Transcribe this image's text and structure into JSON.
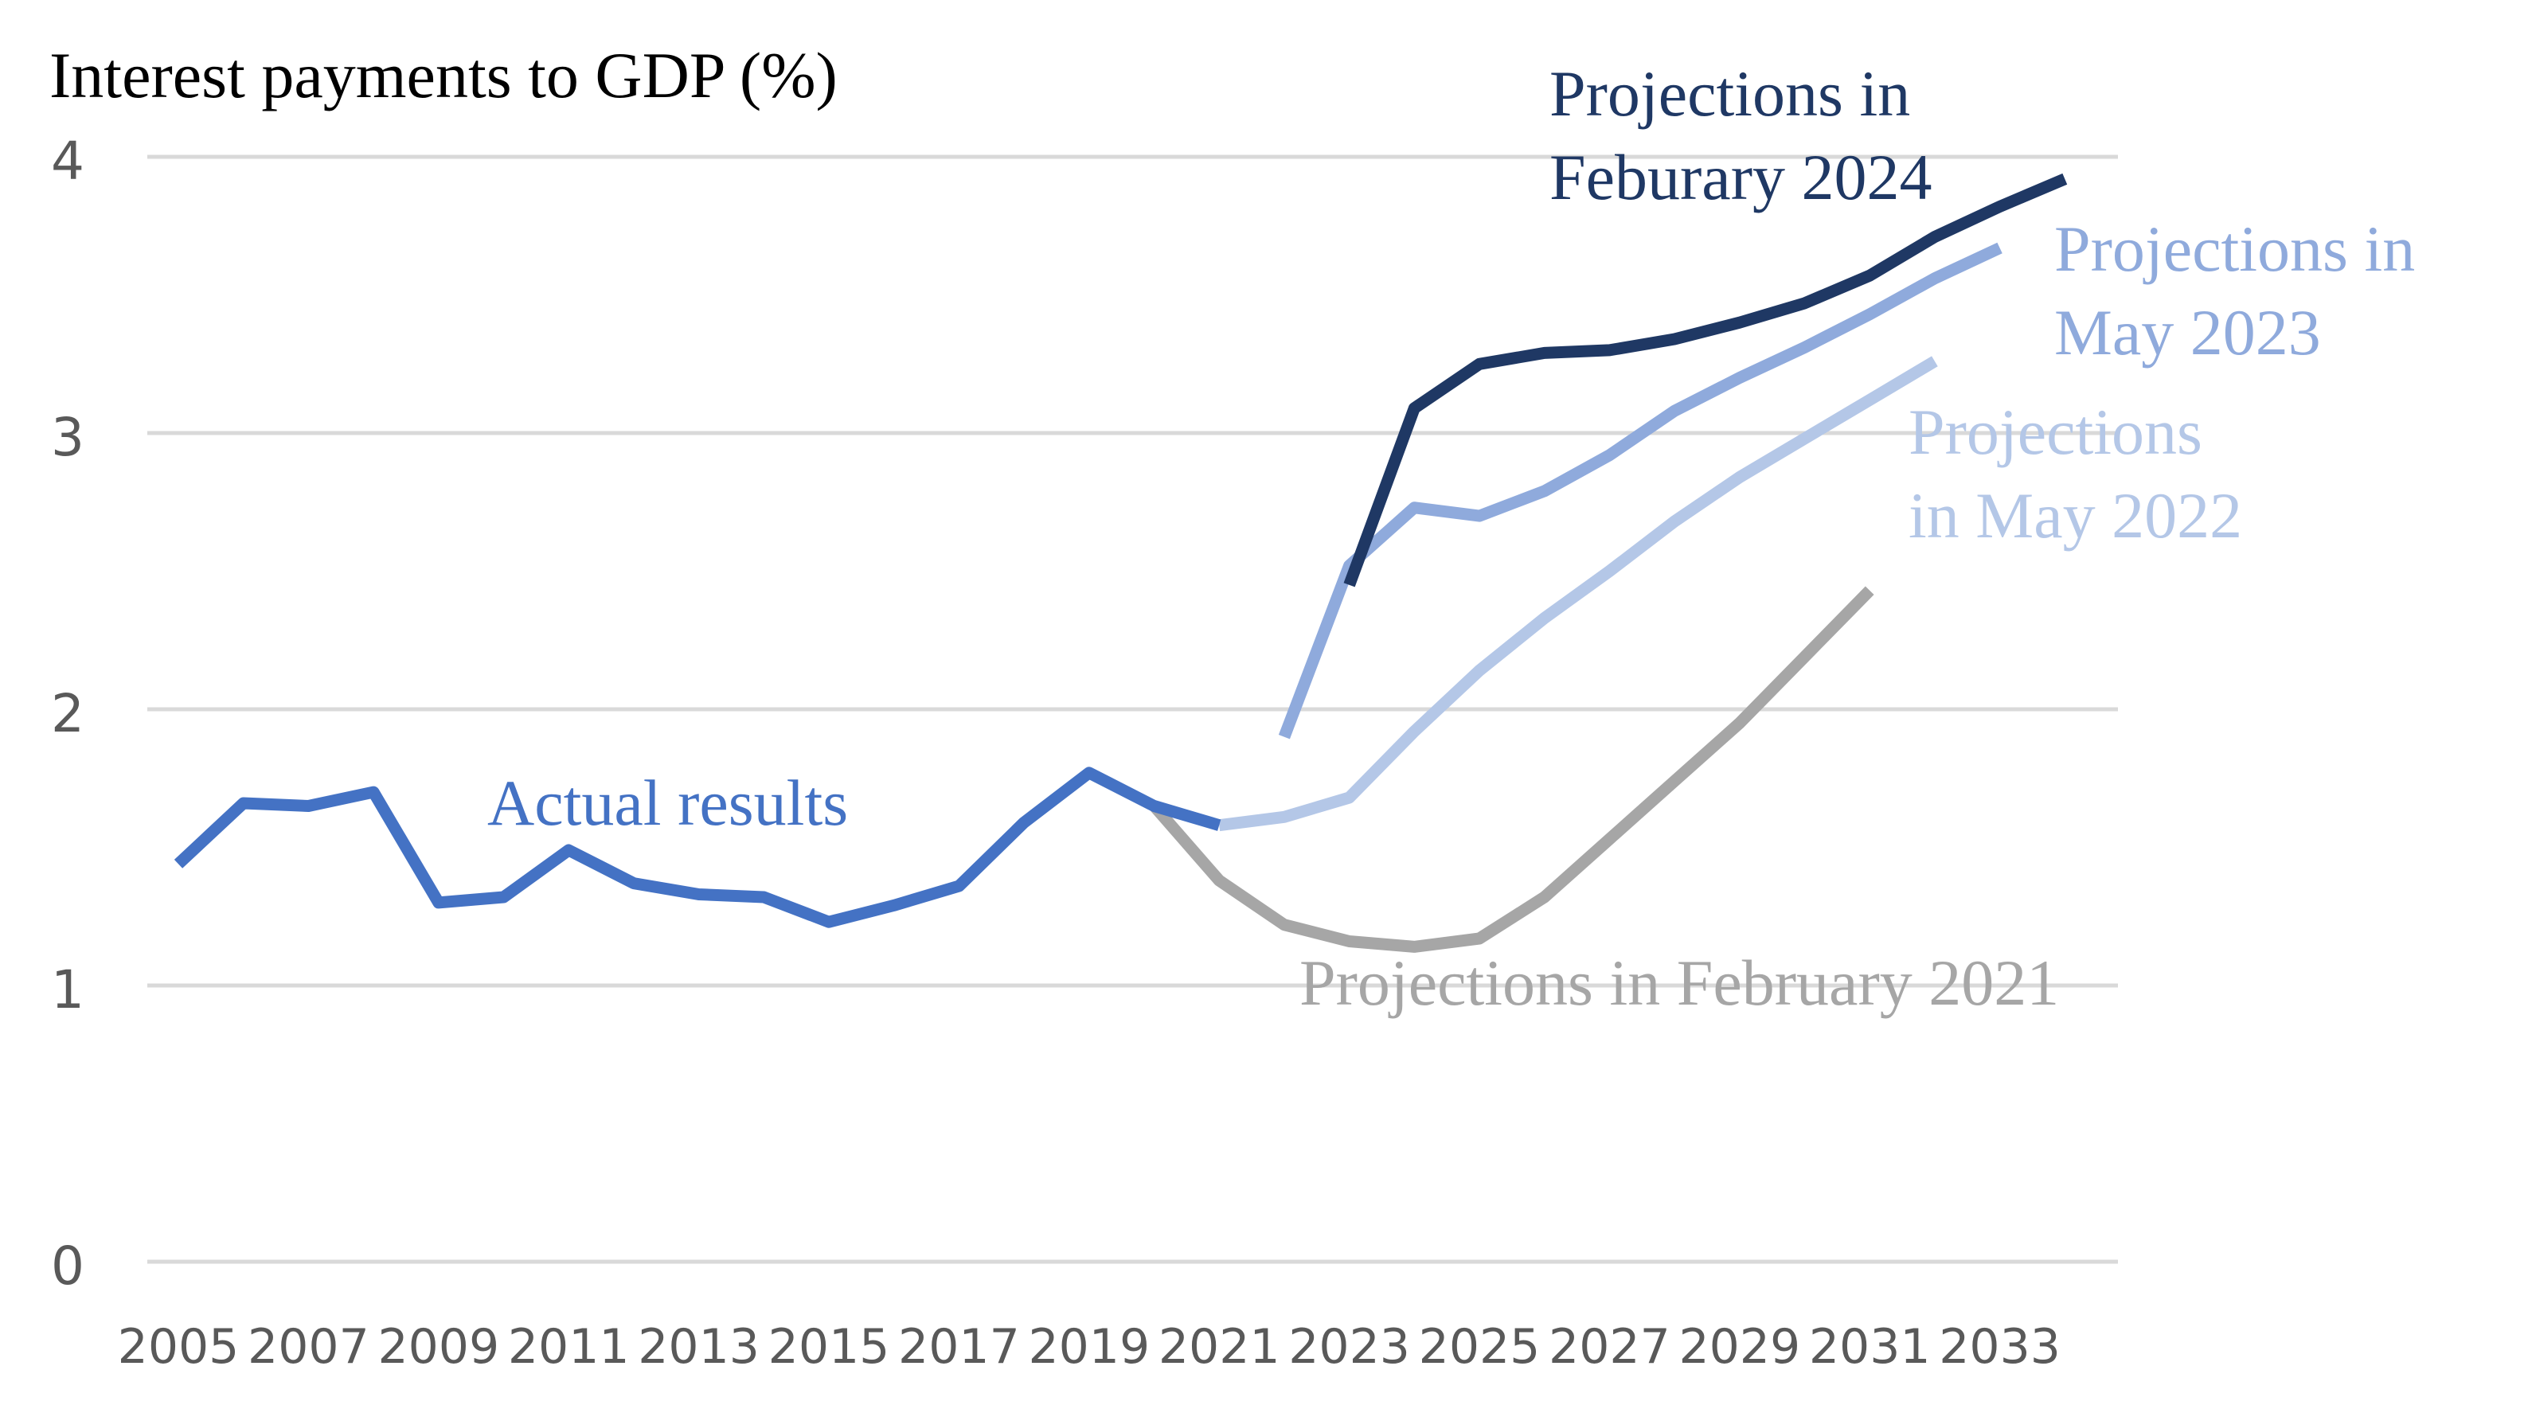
{
  "chart_data": {
    "type": "line",
    "title": "Interest payments to GDP (%)",
    "ylim": [
      0,
      4
    ],
    "yticks": [
      "0",
      "1",
      "2",
      "3",
      "4"
    ],
    "xlim": [
      2005,
      2034
    ],
    "xticks": [
      "2005",
      "2007",
      "2009",
      "2011",
      "2013",
      "2015",
      "2017",
      "2019",
      "2021",
      "2023",
      "2025",
      "2027",
      "2029",
      "2031",
      "2033"
    ],
    "grid": true,
    "series": [
      {
        "name": "Projections in February 2021",
        "label_lines": [
          "Projections in February 2021"
        ],
        "color": "#a6a6a6",
        "x": [
          2020,
          2021,
          2022,
          2023,
          2024,
          2025,
          2026,
          2027,
          2028,
          2029,
          2030,
          2031
        ],
        "y": [
          1.65,
          1.38,
          1.22,
          1.16,
          1.14,
          1.17,
          1.32,
          1.53,
          1.74,
          1.95,
          2.19,
          2.43
        ]
      },
      {
        "name": "Projections in May 2022",
        "label_lines": [
          "Projections",
          "in May 2022"
        ],
        "color": "#b4c7e7",
        "x": [
          2021,
          2022,
          2023,
          2024,
          2025,
          2026,
          2027,
          2028,
          2029,
          2030,
          2031,
          2032
        ],
        "y": [
          1.58,
          1.61,
          1.68,
          1.92,
          2.14,
          2.33,
          2.5,
          2.68,
          2.84,
          2.98,
          3.12,
          3.26
        ]
      },
      {
        "name": "Projections in May 2023",
        "label_lines": [
          "Projections in",
          "May 2023"
        ],
        "color": "#8faadc",
        "x": [
          2022,
          2023,
          2024,
          2025,
          2026,
          2027,
          2028,
          2029,
          2030,
          2031,
          2032,
          2033
        ],
        "y": [
          1.9,
          2.52,
          2.73,
          2.7,
          2.79,
          2.92,
          3.08,
          3.2,
          3.31,
          3.43,
          3.56,
          3.67
        ]
      },
      {
        "name": "Projections in Feburary 2024",
        "label_lines": [
          "Projections in",
          "Feburary 2024"
        ],
        "color": "#1f3864",
        "x": [
          2023,
          2024,
          2025,
          2026,
          2027,
          2028,
          2029,
          2030,
          2031,
          2032,
          2033,
          2034
        ],
        "y": [
          2.45,
          3.09,
          3.25,
          3.29,
          3.3,
          3.34,
          3.4,
          3.47,
          3.57,
          3.71,
          3.82,
          3.92
        ]
      },
      {
        "name": "Actual results",
        "label_lines": [
          "Actual results"
        ],
        "color": "#4472c4",
        "x": [
          2005,
          2006,
          2007,
          2008,
          2009,
          2010,
          2011,
          2012,
          2013,
          2014,
          2015,
          2016,
          2017,
          2018,
          2019,
          2020,
          2021
        ],
        "y": [
          1.44,
          1.66,
          1.65,
          1.7,
          1.3,
          1.32,
          1.49,
          1.37,
          1.33,
          1.32,
          1.23,
          1.29,
          1.36,
          1.59,
          1.77,
          1.65,
          1.58
        ]
      }
    ]
  }
}
